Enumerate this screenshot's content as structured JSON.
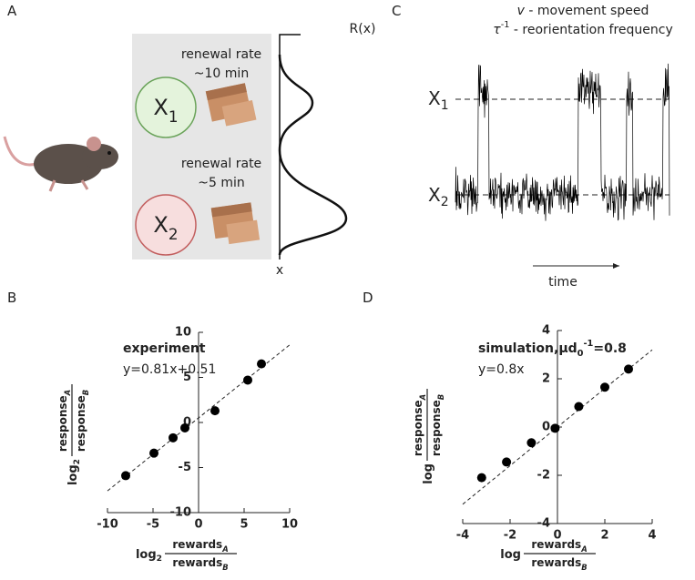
{
  "panels": {
    "a": {
      "letter": "A",
      "sites": [
        {
          "rate_label": "renewal rate",
          "rate_value": "~10 min",
          "site": "X",
          "site_sub": "1"
        },
        {
          "rate_label": "renewal rate",
          "rate_value": "~5 min",
          "site": "X",
          "site_sub": "2"
        }
      ],
      "r_label": "R(x)",
      "x_label": "x"
    },
    "c": {
      "letter": "C",
      "legend": [
        {
          "symbol": "v",
          "text": " - movement speed"
        },
        {
          "symbol": "τ",
          "sup": "-1",
          "text": " - reorientation frequency"
        }
      ],
      "levels": [
        {
          "name": "X",
          "sub": "1"
        },
        {
          "name": "X",
          "sub": "2"
        }
      ],
      "time_label": "time"
    }
  },
  "chart_data": [
    {
      "type": "scatter",
      "label": "B",
      "title": {
        "text": "experiment"
      },
      "fit_label": "y=0.81x+0.51",
      "fit": {
        "slope": 0.81,
        "intercept": 0.51
      },
      "x": [
        -8,
        -4.9,
        -2.8,
        -1.5,
        1.8,
        5.4,
        6.9
      ],
      "series": [
        {
          "color": "#000000",
          "values": [
            -5.9,
            -3.4,
            -1.7,
            -0.6,
            1.3,
            4.7,
            6.5
          ]
        }
      ],
      "xlim": [
        -10,
        10
      ],
      "ylim": [
        -10,
        10
      ],
      "xticks": [
        -10,
        -5,
        0,
        5,
        10
      ],
      "yticks": [
        -10,
        -5,
        0,
        5,
        10
      ],
      "x_label": {
        "prefix": "log",
        "prefix_sub": "2",
        "numerator": "rewards",
        "numerator_sub": "A",
        "denominator": "rewards",
        "denominator_sub": "B"
      },
      "y_label": {
        "prefix": "log",
        "prefix_sub": "2",
        "numerator": "response",
        "numerator_sub": "A",
        "denominator": "response",
        "denominator_sub": "B"
      }
    },
    {
      "type": "scatter",
      "label": "D",
      "title": {
        "text": "simulation,μd",
        "sub": "0",
        "sup": "-1",
        "tail": "=0.8"
      },
      "fit_label": "y=0.8x",
      "fit": {
        "slope": 0.8,
        "intercept": 0
      },
      "x": [
        -3.2,
        -2.15,
        -1.1,
        -0.1,
        0.9,
        2.0,
        3.0
      ],
      "series": [
        {
          "color": "#000000",
          "values": [
            -2.1,
            -1.45,
            -0.65,
            -0.05,
            0.85,
            1.65,
            2.4
          ]
        }
      ],
      "xlim": [
        -4,
        4
      ],
      "ylim": [
        -4,
        4
      ],
      "xticks": [
        -4,
        -2,
        0,
        2,
        4
      ],
      "yticks": [
        -4,
        -2,
        0,
        2,
        4
      ],
      "x_label": {
        "prefix": "log",
        "numerator": "rewards",
        "numerator_sub": "A",
        "denominator": "rewards",
        "denominator_sub": "B"
      },
      "y_label": {
        "prefix": "log",
        "numerator": "response",
        "numerator_sub": "A",
        "denominator": "response",
        "denominator_sub": "B"
      }
    }
  ]
}
